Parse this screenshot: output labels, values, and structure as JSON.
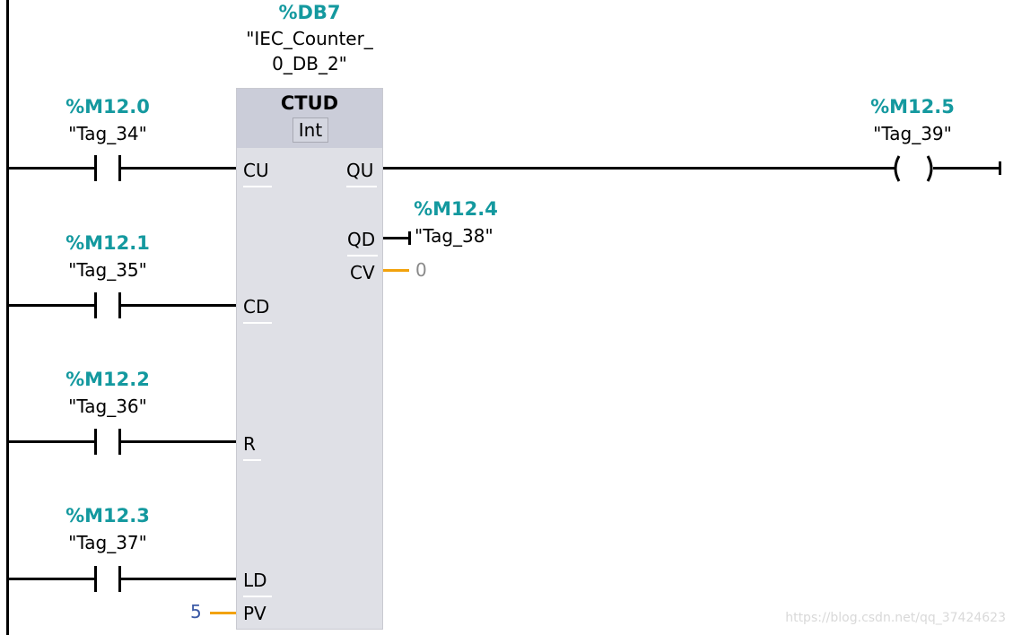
{
  "instance": {
    "address": "%DB7",
    "name_line1": "\"IEC_Counter_",
    "name_line2": "0_DB_2\""
  },
  "block": {
    "type": "CTUD",
    "data_type": "Int",
    "inputs": [
      "CU",
      "CD",
      "R",
      "LD",
      "PV"
    ],
    "outputs": [
      "QU",
      "QD",
      "CV"
    ]
  },
  "contacts": [
    {
      "address": "%M12.0",
      "tag": "\"Tag_34\""
    },
    {
      "address": "%M12.1",
      "tag": "\"Tag_35\""
    },
    {
      "address": "%M12.2",
      "tag": "\"Tag_36\""
    },
    {
      "address": "%M12.3",
      "tag": "\"Tag_37\""
    }
  ],
  "pv_value": "5",
  "coil": {
    "address": "%M12.5",
    "tag": "\"Tag_39\""
  },
  "qd_output": {
    "address": "%M12.4",
    "tag": "\"Tag_38\""
  },
  "cv_value": "0",
  "colors": {
    "address": "#14999f",
    "pin_wire": "#f2a20c",
    "block_body": "#dfe0e6",
    "block_header": "#cbcdd9"
  },
  "watermark": "https://blog.csdn.net/qq_37424623"
}
